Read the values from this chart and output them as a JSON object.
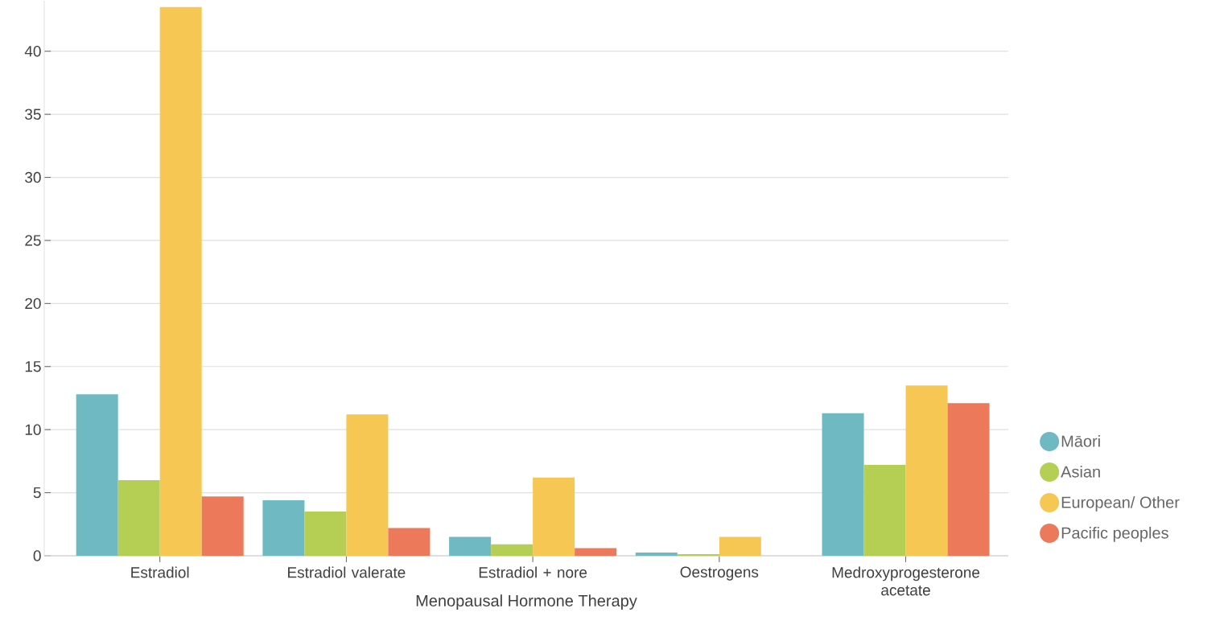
{
  "chart_data": {
    "type": "bar",
    "xlabel": "Menopausal Hormone Therapy",
    "categories": [
      "Estradiol",
      "Estradiol valerate",
      "Estradiol + nore",
      "Oestrogens",
      "Medroxyprogesterone acetate"
    ],
    "series": [
      {
        "name": "Māori",
        "color": "#6fb9c2",
        "values": [
          12.8,
          4.4,
          1.5,
          0.26,
          11.3
        ]
      },
      {
        "name": "Asian",
        "color": "#b4cf54",
        "values": [
          6.0,
          3.5,
          0.9,
          0.13,
          7.2
        ]
      },
      {
        "name": "European/ Other",
        "color": "#f6c853",
        "values": [
          43.5,
          11.2,
          6.2,
          1.5,
          13.5
        ]
      },
      {
        "name": "Pacific peoples",
        "color": "#ec7a5a",
        "values": [
          4.7,
          2.2,
          0.6,
          null,
          12.1
        ]
      }
    ],
    "ylim": [
      0,
      44
    ],
    "yticks": [
      0,
      5,
      10,
      15,
      20,
      25,
      30,
      35,
      40
    ],
    "grid": "y",
    "legend": "right"
  }
}
